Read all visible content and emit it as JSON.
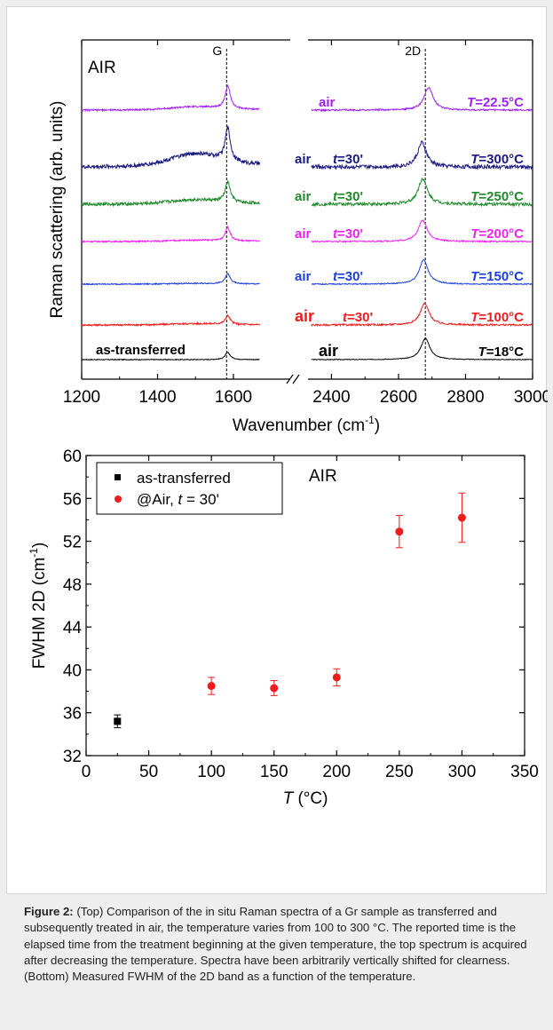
{
  "caption": {
    "label": "Figure 2:",
    "text": " (Top) Comparison of the in situ Raman spectra of a Gr sample as transferred and subsequently treated in air, the temperature varies from 100 to 300 °C. The reported time is the elapsed time from the treatment beginning at the given temperature, the top spectrum is acquired after decreasing the temperature. Spectra have been arbitrarily vertically shifted for clearness. (Bottom) Measured FWHM of the 2D band as a function of the temperature."
  },
  "colors": {
    "black": "#000000",
    "red": "#ee1c1c",
    "blue": "#1a3fe0",
    "magenta": "#ee22ee",
    "green": "#1f8a2a",
    "navy": "#1a1a80",
    "purple": "#a020f0"
  },
  "chart_data": [
    {
      "type": "line",
      "panel_label": "AIR",
      "xlabel": "Wavenumber (cm",
      "xlabel_sup": "-1",
      "xlabel_end": ")",
      "ylabel": "Raman scattering (arb. units)",
      "x_broken_axis": {
        "left_range": [
          1200,
          1670
        ],
        "right_range": [
          2330,
          3000
        ],
        "ticks": [
          "1200",
          "1400",
          "1600",
          "2400",
          "2600",
          "2800",
          "3000"
        ]
      },
      "peak_markers": [
        {
          "label": "G",
          "x": 1582
        },
        {
          "label": "2D",
          "x": 2680
        }
      ],
      "series": [
        {
          "left_label": "as-transferred",
          "mid_label": "air",
          "mid_time": "",
          "temp_label": "T=18°C",
          "color": "black",
          "g_height": 0.5,
          "d2_height": 1.5,
          "d2_pos": 2680,
          "noise": 0.05,
          "bg_rise": 0.0
        },
        {
          "left_label": "",
          "mid_label": "air",
          "mid_time": "t=30'",
          "temp_label": "T=100°C",
          "color": "red",
          "g_height": 0.6,
          "d2_height": 1.5,
          "d2_pos": 2678,
          "noise": 0.12,
          "bg_rise": 0.1
        },
        {
          "left_label": "",
          "mid_label": "air",
          "mid_time": "t=30'",
          "temp_label": "T=150°C",
          "color": "blue",
          "g_height": 0.7,
          "d2_height": 1.7,
          "d2_pos": 2675,
          "noise": 0.08,
          "bg_rise": 0.05
        },
        {
          "left_label": "",
          "mid_label": "air",
          "mid_time": "t=30'",
          "temp_label": "T=200°C",
          "color": "magenta",
          "g_height": 0.95,
          "d2_height": 1.5,
          "d2_pos": 2672,
          "noise": 0.1,
          "bg_rise": 0.1
        },
        {
          "left_label": "",
          "mid_label": "air",
          "mid_time": "t=30'",
          "temp_label": "T=250°C",
          "color": "green",
          "g_height": 1.4,
          "d2_height": 1.8,
          "d2_pos": 2672,
          "noise": 0.22,
          "bg_rise": 0.35
        },
        {
          "left_label": "",
          "mid_label": "air",
          "mid_time": "t=30'",
          "temp_label": "T=300°C",
          "color": "navy",
          "g_height": 2.3,
          "d2_height": 1.7,
          "d2_pos": 2670,
          "noise": 0.28,
          "bg_rise": 1.0
        },
        {
          "left_label": "",
          "mid_label": "air",
          "mid_time": "",
          "temp_label": "T=22.5°C",
          "color": "purple",
          "g_height": 1.6,
          "d2_height": 1.6,
          "d2_pos": 2690,
          "noise": 0.12,
          "bg_rise": 0.25
        }
      ]
    },
    {
      "type": "scatter",
      "panel_label": "AIR",
      "xlabel": "T (°C)",
      "ylabel": "FWHM 2D (cm",
      "ylabel_sup": "-1",
      "ylabel_end": ")",
      "xlim": [
        0,
        350
      ],
      "ylim": [
        32,
        60
      ],
      "xticks": [
        0,
        50,
        100,
        150,
        200,
        250,
        300,
        350
      ],
      "yticks": [
        32,
        36,
        40,
        44,
        48,
        52,
        56,
        60
      ],
      "legend_position": "top-left",
      "series": [
        {
          "name": "as-transferred",
          "marker": "square",
          "color": "black",
          "points": [
            {
              "x": 25,
              "y": 35.2,
              "err": 0.6
            }
          ]
        },
        {
          "name": "@Air, t = 30'",
          "marker": "circle",
          "color": "red",
          "points": [
            {
              "x": 100,
              "y": 38.5,
              "err": 0.8
            },
            {
              "x": 150,
              "y": 38.3,
              "err": 0.7
            },
            {
              "x": 200,
              "y": 39.3,
              "err": 0.8
            },
            {
              "x": 250,
              "y": 52.9,
              "err": 1.5
            },
            {
              "x": 300,
              "y": 54.2,
              "err": 2.3
            }
          ]
        }
      ]
    }
  ]
}
